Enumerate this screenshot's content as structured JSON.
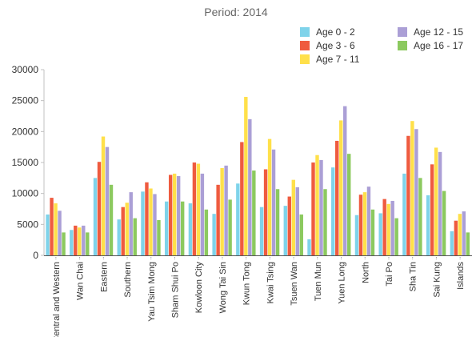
{
  "chart_data": {
    "type": "bar",
    "title": "Period: 2014",
    "xlabel": "",
    "ylabel": "",
    "ylim": [
      0,
      30000
    ],
    "yticks": [
      "0",
      "5000",
      "10000",
      "15000",
      "20000",
      "25000",
      "30000"
    ],
    "legend_position": "top-right",
    "categories": [
      "Central and Western",
      "Wan Chai",
      "Eastern",
      "Southern",
      "Yau Tsim Mong",
      "Sham Shui Po",
      "Kowloon City",
      "Wong Tai Sin",
      "Kwun Tong",
      "Kwai Tsing",
      "Tsuen Wan",
      "Tuen Mun",
      "Yuen Long",
      "North",
      "Tai Po",
      "Sha Tin",
      "Sai Kung",
      "Islands"
    ],
    "series": [
      {
        "name": "Age 0 - 2",
        "color": "#7fd3ea",
        "values": [
          6600,
          4100,
          12500,
          5800,
          10300,
          8700,
          8400,
          6700,
          11600,
          7800,
          8000,
          2600,
          14200,
          6500,
          6800,
          13200,
          9700,
          3900
        ]
      },
      {
        "name": "Age 3 - 6",
        "color": "#ef5b3f",
        "values": [
          9300,
          4800,
          15100,
          7800,
          11800,
          13000,
          15000,
          11400,
          18300,
          13900,
          9500,
          15000,
          18500,
          9800,
          9100,
          19300,
          14700,
          5600
        ]
      },
      {
        "name": "Age 7 - 11",
        "color": "#ffe04a",
        "values": [
          8400,
          4500,
          19200,
          8500,
          10800,
          13200,
          14800,
          14100,
          25600,
          18800,
          12200,
          16200,
          21800,
          10200,
          8300,
          21700,
          17400,
          6700
        ]
      },
      {
        "name": "Age 12 - 15",
        "color": "#ab9fd6",
        "values": [
          7200,
          4800,
          17500,
          10200,
          9900,
          12800,
          13200,
          14500,
          22000,
          17100,
          11000,
          15400,
          24100,
          11100,
          8800,
          20400,
          16700,
          7100
        ]
      },
      {
        "name": "Age 16 - 17",
        "color": "#8cc95f",
        "values": [
          3700,
          3700,
          11400,
          6000,
          5700,
          8700,
          7400,
          9000,
          13700,
          10700,
          6600,
          10700,
          16400,
          7400,
          6000,
          12500,
          10400,
          3700
        ]
      }
    ]
  }
}
